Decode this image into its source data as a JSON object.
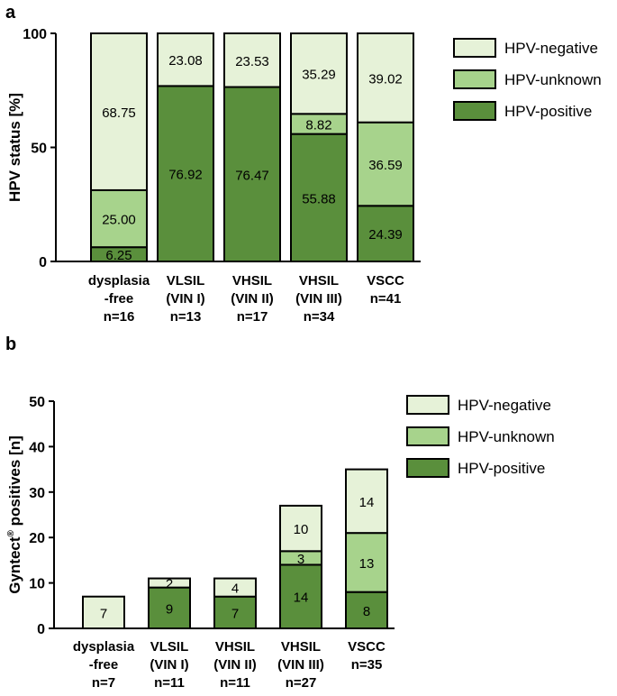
{
  "colors": {
    "HPV-negative": "#e6f2d8",
    "HPV-unknown": "#a7d38c",
    "HPV-positive": "#5a8f3c",
    "stroke": "#000000"
  },
  "chart_data": [
    {
      "panel": "a",
      "type": "bar",
      "stacked": true,
      "ylabel": "HPV status [%]",
      "ylim": [
        0,
        100
      ],
      "yticks": [
        "0",
        "50",
        "100"
      ],
      "categories": [
        [
          "dysplasia",
          "-free",
          "n=16"
        ],
        [
          "VLSIL",
          "(VIN I)",
          "n=13"
        ],
        [
          "VHSIL",
          "(VIN II)",
          "n=17"
        ],
        [
          "VHSIL",
          "(VIN III)",
          "n=34"
        ],
        [
          "VSCC",
          "n=41"
        ]
      ],
      "series": [
        {
          "name": "HPV-positive",
          "values": [
            6.25,
            76.92,
            76.47,
            55.88,
            24.39
          ],
          "labels": [
            "6.25",
            "76.92",
            "76.47",
            "55.88",
            "24.39"
          ]
        },
        {
          "name": "HPV-unknown",
          "values": [
            25.0,
            0,
            0,
            8.82,
            36.59
          ],
          "labels": [
            "25.00",
            "",
            "",
            "8.82",
            "36.59"
          ]
        },
        {
          "name": "HPV-negative",
          "values": [
            68.75,
            23.08,
            23.53,
            35.29,
            39.02
          ],
          "labels": [
            "68.75",
            "23.08",
            "23.53",
            "35.29",
            "39.02"
          ]
        }
      ],
      "legend": [
        "HPV-negative",
        "HPV-unknown",
        "HPV-positive"
      ],
      "legend_position": "top-right"
    },
    {
      "panel": "b",
      "type": "bar",
      "stacked": true,
      "ylabel_main": "Gyntect",
      "ylabel_sup": "®",
      "ylabel_rest": " positives [n]",
      "ylim": [
        0,
        50
      ],
      "yticks": [
        "0",
        "10",
        "20",
        "30",
        "40",
        "50"
      ],
      "categories": [
        [
          "dysplasia",
          "-free",
          "n=7"
        ],
        [
          "VLSIL",
          "(VIN I)",
          "n=11"
        ],
        [
          "VHSIL",
          "(VIN II)",
          "n=11"
        ],
        [
          "VHSIL",
          "(VIN III)",
          "n=27"
        ],
        [
          "VSCC",
          "n=35"
        ]
      ],
      "series": [
        {
          "name": "HPV-positive",
          "values": [
            0,
            9,
            7,
            14,
            8
          ],
          "labels": [
            "",
            "9",
            "7",
            "14",
            "8"
          ]
        },
        {
          "name": "HPV-unknown",
          "values": [
            0,
            0,
            0,
            3,
            13
          ],
          "labels": [
            "",
            "",
            "",
            "3",
            "13"
          ]
        },
        {
          "name": "HPV-negative",
          "values": [
            7,
            2,
            4,
            10,
            14
          ],
          "labels": [
            "7",
            "2",
            "4",
            "10",
            "14"
          ]
        }
      ],
      "legend": [
        "HPV-negative",
        "HPV-unknown",
        "HPV-positive"
      ],
      "legend_position": "top-right"
    }
  ]
}
